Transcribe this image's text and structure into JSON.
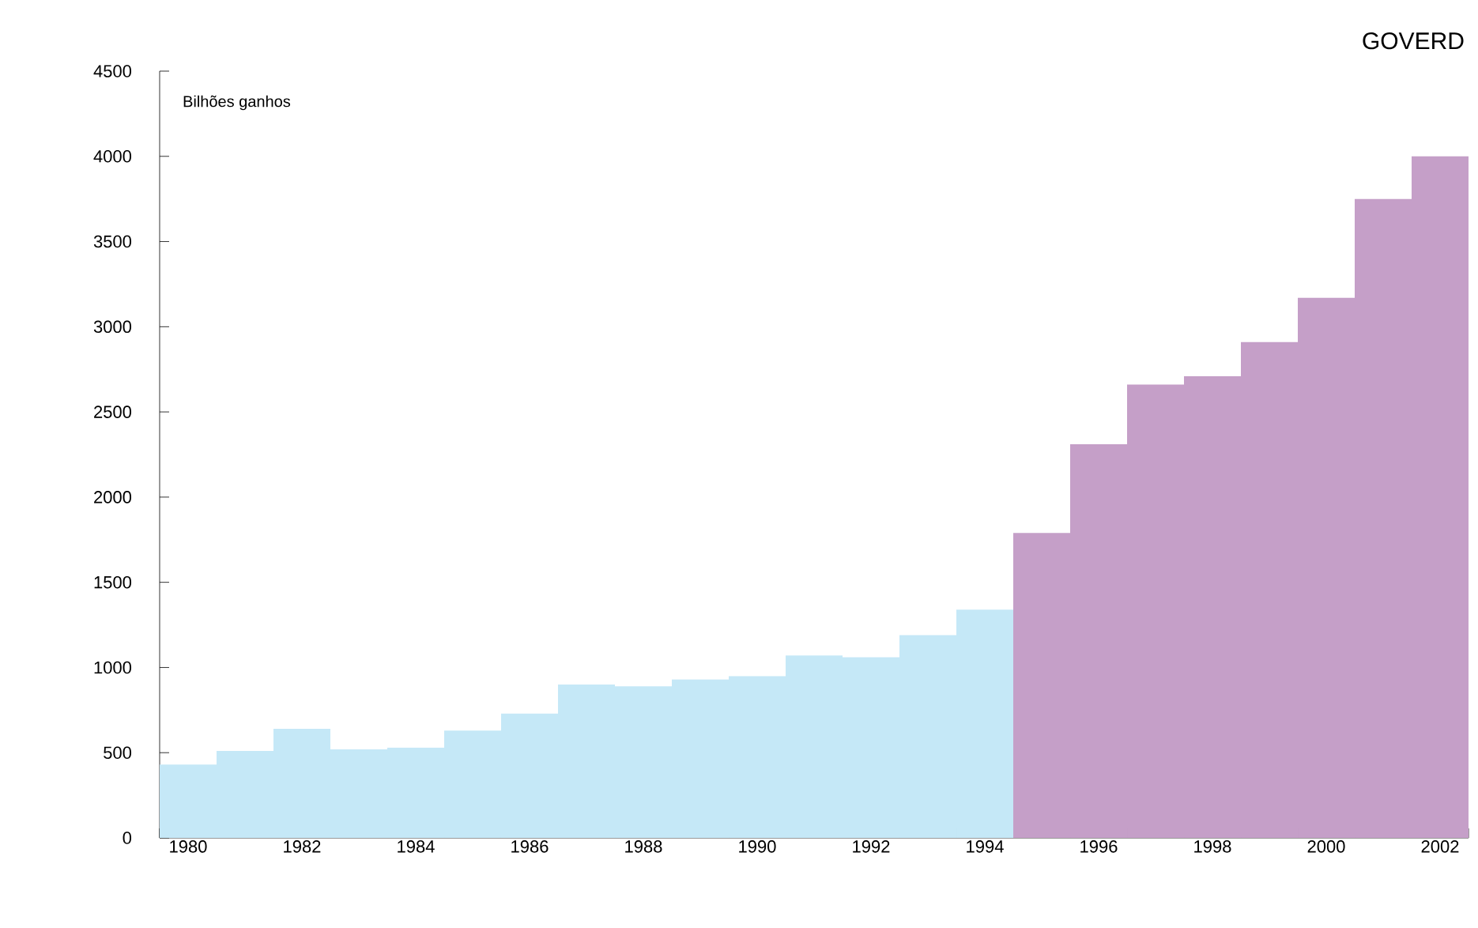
{
  "chart_data": {
    "type": "bar",
    "title": "GOVERD",
    "ylabel": "Bilhões ganhos",
    "categories": [
      "1980",
      null,
      "1982",
      null,
      "1984",
      null,
      "1986",
      null,
      "1988",
      null,
      "1990",
      null,
      "1992",
      null,
      "1994",
      null,
      "1996",
      null,
      "1998",
      null,
      "2000",
      null,
      "2002"
    ],
    "values": [
      430,
      510,
      640,
      520,
      530,
      630,
      730,
      900,
      890,
      930,
      950,
      1070,
      1060,
      1190,
      1340,
      1790,
      2310,
      2660,
      2710,
      2910,
      3170,
      3750,
      4000
    ],
    "colors": [
      "#c5e8f7",
      "#c5e8f7",
      "#c5e8f7",
      "#c5e8f7",
      "#c5e8f7",
      "#c5e8f7",
      "#c5e8f7",
      "#c5e8f7",
      "#c5e8f7",
      "#c5e8f7",
      "#c5e8f7",
      "#c5e8f7",
      "#c5e8f7",
      "#c5e8f7",
      "#c5e8f7",
      "#c59fc8",
      "#c59fc8",
      "#c59fc8",
      "#c59fc8",
      "#c59fc8",
      "#c59fc8",
      "#c59fc8",
      "#c59fc8"
    ],
    "ylim": [
      0,
      4500
    ],
    "yticks": [
      0,
      500,
      1000,
      1500,
      2000,
      2500,
      3000,
      3500,
      4000,
      4500
    ]
  }
}
